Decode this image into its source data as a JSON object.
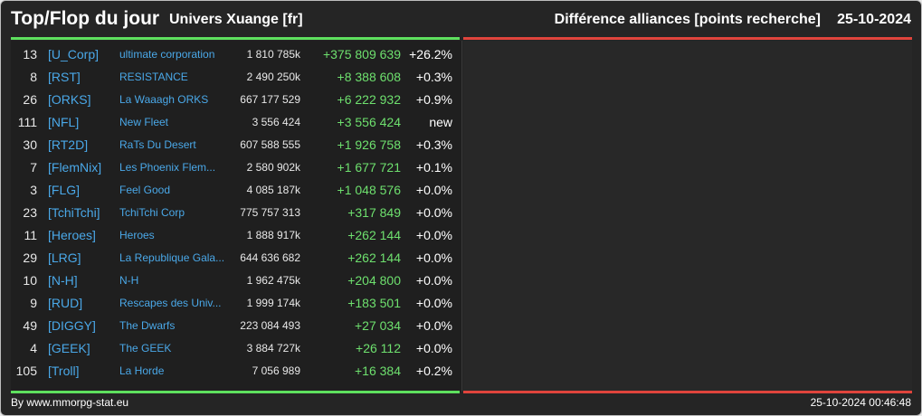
{
  "header": {
    "title": "Top/Flop du jour",
    "universe": "Univers Xuange [fr]",
    "category": "Différence alliances [points recherche]",
    "date": "25-10-2024"
  },
  "rows": [
    {
      "rank": "13",
      "tag": "[U_Corp]",
      "name": "ultimate corporation",
      "points": "1 810 785k",
      "diff": "+375 809 639",
      "pct": "+26.2%"
    },
    {
      "rank": "8",
      "tag": "[RST]",
      "name": "RESISTANCE",
      "points": "2 490 250k",
      "diff": "+8 388 608",
      "pct": "+0.3%"
    },
    {
      "rank": "26",
      "tag": "[ORKS]",
      "name": "La Waaagh ORKS",
      "points": "667 177 529",
      "diff": "+6 222 932",
      "pct": "+0.9%"
    },
    {
      "rank": "111",
      "tag": "[NFL]",
      "name": "New Fleet",
      "points": "3 556 424",
      "diff": "+3 556 424",
      "pct": "new"
    },
    {
      "rank": "30",
      "tag": "[RT2D]",
      "name": "RaTs Du Desert",
      "points": "607 588 555",
      "diff": "+1 926 758",
      "pct": "+0.3%"
    },
    {
      "rank": "7",
      "tag": "[FlemNix]",
      "name": "Les Phoenix Flem...",
      "points": "2 580 902k",
      "diff": "+1 677 721",
      "pct": "+0.1%"
    },
    {
      "rank": "3",
      "tag": "[FLG]",
      "name": "Feel Good",
      "points": "4 085 187k",
      "diff": "+1 048 576",
      "pct": "+0.0%"
    },
    {
      "rank": "23",
      "tag": "[TchiTchi]",
      "name": "TchiTchi Corp",
      "points": "775 757 313",
      "diff": "+317 849",
      "pct": "+0.0%"
    },
    {
      "rank": "11",
      "tag": "[Heroes]",
      "name": "Heroes",
      "points": "1 888 917k",
      "diff": "+262 144",
      "pct": "+0.0%"
    },
    {
      "rank": "29",
      "tag": "[LRG]",
      "name": "La Republique Gala...",
      "points": "644 636 682",
      "diff": "+262 144",
      "pct": "+0.0%"
    },
    {
      "rank": "10",
      "tag": "[N-H]",
      "name": "N-H",
      "points": "1 962 475k",
      "diff": "+204 800",
      "pct": "+0.0%"
    },
    {
      "rank": "9",
      "tag": "[RUD]",
      "name": "Rescapes des Univ...",
      "points": "1 999 174k",
      "diff": "+183 501",
      "pct": "+0.0%"
    },
    {
      "rank": "49",
      "tag": "[DIGGY]",
      "name": "The Dwarfs",
      "points": "223 084 493",
      "diff": "+27 034",
      "pct": "+0.0%"
    },
    {
      "rank": "4",
      "tag": "[GEEK]",
      "name": "The GEEK",
      "points": "3 884 727k",
      "diff": "+26 112",
      "pct": "+0.0%"
    },
    {
      "rank": "105",
      "tag": "[Troll]",
      "name": "La Horde",
      "points": "7 056 989",
      "diff": "+16 384",
      "pct": "+0.2%"
    }
  ],
  "footer": {
    "credit": "By www.mmorpg-stat.eu",
    "timestamp": "25-10-2024 00:46:48"
  },
  "colors": {
    "top_line": "#5ee05e",
    "flop_line": "#e0443c",
    "link": "#4aa8e8",
    "gain": "#6ee06e"
  }
}
